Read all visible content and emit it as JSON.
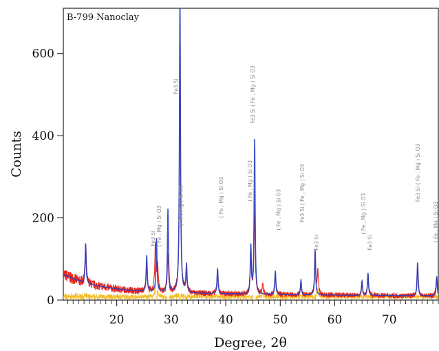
{
  "chart_data": {
    "type": "line",
    "title": "",
    "sample_label": "B-799 Nanoclay",
    "xlabel": "Degree, 2θ",
    "ylabel": "Counts",
    "xlim": [
      10.2,
      79
    ],
    "ylim": [
      0,
      710
    ],
    "x_ticks": [
      "20",
      "30",
      "40",
      "50",
      "60",
      "70"
    ],
    "y_ticks": [
      "0",
      "200",
      "400",
      "600"
    ],
    "x_minor_step": 1,
    "grid": false,
    "colors": {
      "observed": "#e8261c",
      "calculated": "#2b3fc0",
      "difference": "#f2b200",
      "label": "#8a8a8a"
    },
    "baseline": [
      [
        10.2,
        62
      ],
      [
        12,
        52
      ],
      [
        14,
        42
      ],
      [
        16,
        36
      ],
      [
        18,
        31
      ],
      [
        20,
        27
      ],
      [
        22,
        24
      ],
      [
        24,
        22
      ],
      [
        26,
        20
      ],
      [
        28,
        19
      ],
      [
        30,
        18
      ],
      [
        35,
        16
      ],
      [
        40,
        15
      ],
      [
        45,
        14
      ],
      [
        50,
        13
      ],
      [
        55,
        12
      ],
      [
        60,
        12
      ],
      [
        65,
        11
      ],
      [
        70,
        11
      ],
      [
        75,
        10
      ],
      [
        79,
        10
      ]
    ],
    "series": [
      {
        "name": "",
        "role": "observed",
        "peaks": [
          [
            14.3,
            90
          ],
          [
            25.5,
            75
          ],
          [
            27.1,
            115
          ],
          [
            27.5,
            65
          ],
          [
            29.4,
            90
          ],
          [
            31.6,
            610
          ],
          [
            32.8,
            55
          ],
          [
            38.5,
            55
          ],
          [
            44.6,
            100
          ],
          [
            45.3,
            200
          ],
          [
            46.8,
            25
          ],
          [
            49.1,
            50
          ],
          [
            53.8,
            32
          ],
          [
            56.4,
            100
          ],
          [
            56.9,
            55
          ],
          [
            65.0,
            30
          ],
          [
            66.1,
            50
          ],
          [
            75.2,
            75
          ],
          [
            78.7,
            45
          ]
        ]
      },
      {
        "name": "",
        "role": "calculated",
        "peaks": [
          [
            14.3,
            95
          ],
          [
            25.5,
            88
          ],
          [
            27.3,
            130
          ],
          [
            29.4,
            202
          ],
          [
            31.6,
            720
          ],
          [
            32.8,
            68
          ],
          [
            38.5,
            62
          ],
          [
            44.6,
            115
          ],
          [
            45.3,
            375
          ],
          [
            49.1,
            58
          ],
          [
            53.8,
            35
          ],
          [
            56.4,
            110
          ],
          [
            65.0,
            35
          ],
          [
            66.1,
            55
          ],
          [
            75.2,
            82
          ],
          [
            78.7,
            48
          ]
        ]
      }
    ],
    "peak_labels": [
      {
        "x": 27.0,
        "y": 150,
        "text": "Fe3 Si"
      },
      {
        "x": 28.1,
        "y": 180,
        "text": "( Fe , Mg ) Si O3"
      },
      {
        "x": 31.2,
        "y": 520,
        "text": "Fe3 Si"
      },
      {
        "x": 32.1,
        "y": 230,
        "text": "( Fe , Mg ) Si O3"
      },
      {
        "x": 39.5,
        "y": 250,
        "text": "( Fe , Mg ) Si O3"
      },
      {
        "x": 44.8,
        "y": 290,
        "text": "( Fe , Mg ) Si O3"
      },
      {
        "x": 45.3,
        "y": 500,
        "text": "Fe3 Si ( Fe , Mg ) Si O3"
      },
      {
        "x": 50.0,
        "y": 220,
        "text": "( Fe , Mg ) Si O3"
      },
      {
        "x": 54.4,
        "y": 260,
        "text": "Fe3 Si ( Fe , Mg ) Si O3"
      },
      {
        "x": 57.0,
        "y": 140,
        "text": "Fe3 Si"
      },
      {
        "x": 65.6,
        "y": 210,
        "text": "( Fe , Mg ) Si O3"
      },
      {
        "x": 66.8,
        "y": 140,
        "text": "Fe3 Si"
      },
      {
        "x": 75.6,
        "y": 310,
        "text": "Fe3 Si ( Fe , Mg ) Si O3"
      },
      {
        "x": 78.9,
        "y": 190,
        "text": "( Fe , Mg ) Si O3"
      }
    ]
  }
}
